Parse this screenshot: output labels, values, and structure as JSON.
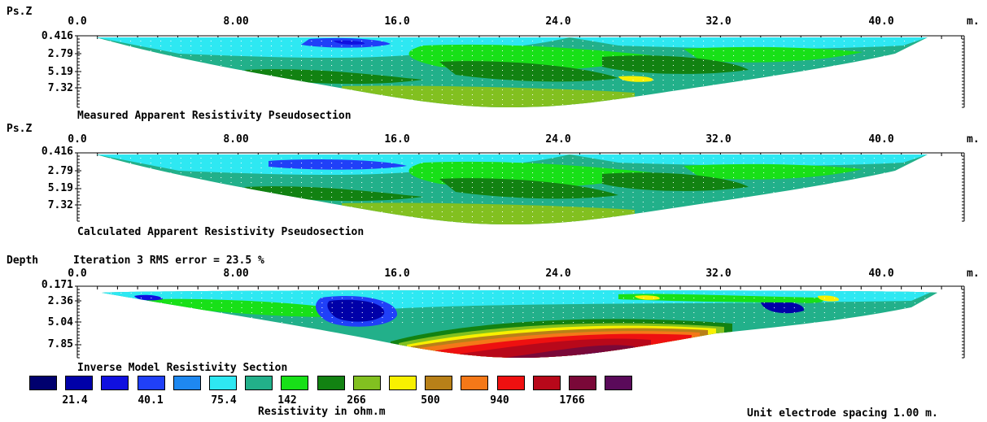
{
  "colors": {
    "scale": [
      "#00006e",
      "#0000a8",
      "#1010e0",
      "#2040f8",
      "#1e88f0",
      "#2ee8f2",
      "#22b08a",
      "#18e018",
      "#128212",
      "#82c020",
      "#f8f000",
      "#b88018",
      "#f47818",
      "#ee1010",
      "#b8081a",
      "#7a0838",
      "#5a0a5a"
    ],
    "surface_dots": "#ffffff"
  },
  "x_axis": {
    "ticks": [
      "0.0",
      "8.00",
      "16.0",
      "24.0",
      "32.0",
      "40.0"
    ],
    "unit": "m."
  },
  "panels": [
    {
      "y_title": "Ps.Z",
      "y_ticks": [
        "0.416",
        "2.79",
        "5.19",
        "7.32"
      ],
      "caption": "Measured Apparent Resistivity Pseudosection",
      "header": ""
    },
    {
      "y_title": "Ps.Z",
      "y_ticks": [
        "0.416",
        "2.79",
        "5.19",
        "7.32"
      ],
      "caption": "Calculated Apparent Resistivity Pseudosection",
      "header": ""
    },
    {
      "y_title": "Depth",
      "y_ticks": [
        "0.171",
        "2.36",
        "5.04",
        "7.85"
      ],
      "caption": "Inverse Model Resistivity Section",
      "header": "Iteration 3 RMS error = 23.5 %"
    }
  ],
  "color_scale": {
    "values": [
      "21.4",
      "40.1",
      "75.4",
      "142",
      "266",
      "500",
      "940",
      "1766"
    ],
    "label": "Resistivity in ohm.m"
  },
  "footer": {
    "spacing_note": "Unit electrode spacing 1.00 m."
  }
}
